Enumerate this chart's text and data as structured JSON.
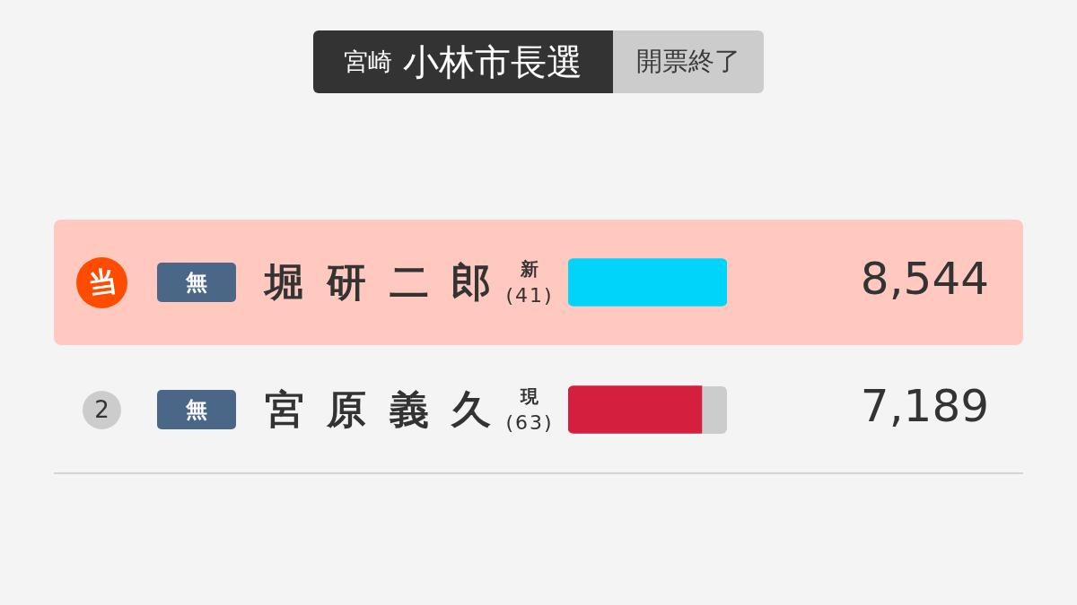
{
  "chart_data": {
    "type": "bar",
    "orientation": "horizontal",
    "subtitle": "宮崎",
    "title": "小林市長選",
    "categories": [
      "堀研二郎",
      "宮原義久"
    ],
    "values": [
      8544,
      7189
    ],
    "colors": [
      "#00d4fa",
      "#d4203e"
    ],
    "value_labels": [
      "8,544",
      "7,189"
    ],
    "tick_labels": "y",
    "annotations": [
      "開票終了",
      "当",
      "無",
      "新",
      "(41)",
      "2",
      "無",
      "現",
      "(63)"
    ]
  }
}
